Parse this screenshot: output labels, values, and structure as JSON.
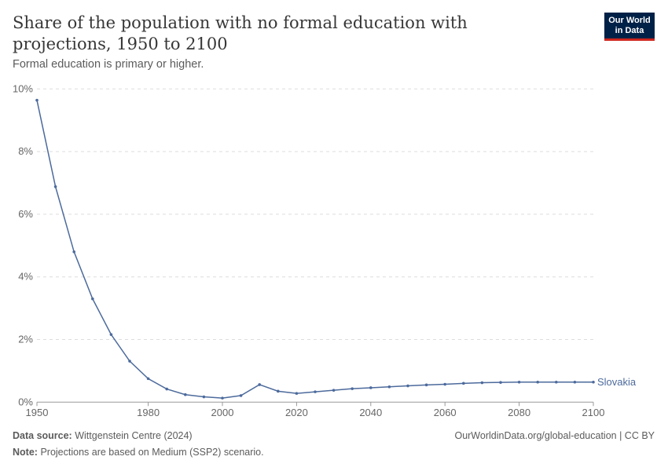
{
  "header": {
    "title": "Share of the population with no formal education with projections, 1950 to 2100",
    "subtitle": "Formal education is primary or higher.",
    "logo": "Our World in Data"
  },
  "footer": {
    "source_label": "Data source:",
    "source": "Wittgenstein Centre (2024)",
    "url": "OurWorldinData.org/global-education | CC BY",
    "note_label": "Note:",
    "note": "Projections are based on Medium (SSP2) scenario."
  },
  "chart_data": {
    "type": "line",
    "title": "Share of the population with no formal education with projections, 1950 to 2100",
    "xlim": [
      1950,
      2100
    ],
    "ylim": [
      0,
      10
    ],
    "x_ticks": [
      "1950",
      "1980",
      "2000",
      "2020",
      "2040",
      "2060",
      "2080",
      "2100"
    ],
    "y_ticks": [
      "0%",
      "2%",
      "4%",
      "6%",
      "8%",
      "10%"
    ],
    "grid": "horizontal dashed",
    "line_color": "#4c6a9c",
    "series": [
      {
        "name": "Slovakia",
        "x": [
          1950,
          1955,
          1960,
          1965,
          1970,
          1975,
          1980,
          1985,
          1990,
          1995,
          2000,
          2005,
          2010,
          2015,
          2020,
          2025,
          2030,
          2035,
          2040,
          2045,
          2050,
          2055,
          2060,
          2065,
          2070,
          2075,
          2080,
          2085,
          2090,
          2095,
          2100
        ],
        "values": [
          9.64,
          6.88,
          4.8,
          3.3,
          2.16,
          1.31,
          0.75,
          0.42,
          0.24,
          0.17,
          0.13,
          0.21,
          0.56,
          0.35,
          0.28,
          0.33,
          0.38,
          0.43,
          0.46,
          0.49,
          0.52,
          0.55,
          0.57,
          0.6,
          0.62,
          0.63,
          0.64,
          0.64,
          0.64,
          0.64,
          0.64
        ]
      }
    ]
  }
}
